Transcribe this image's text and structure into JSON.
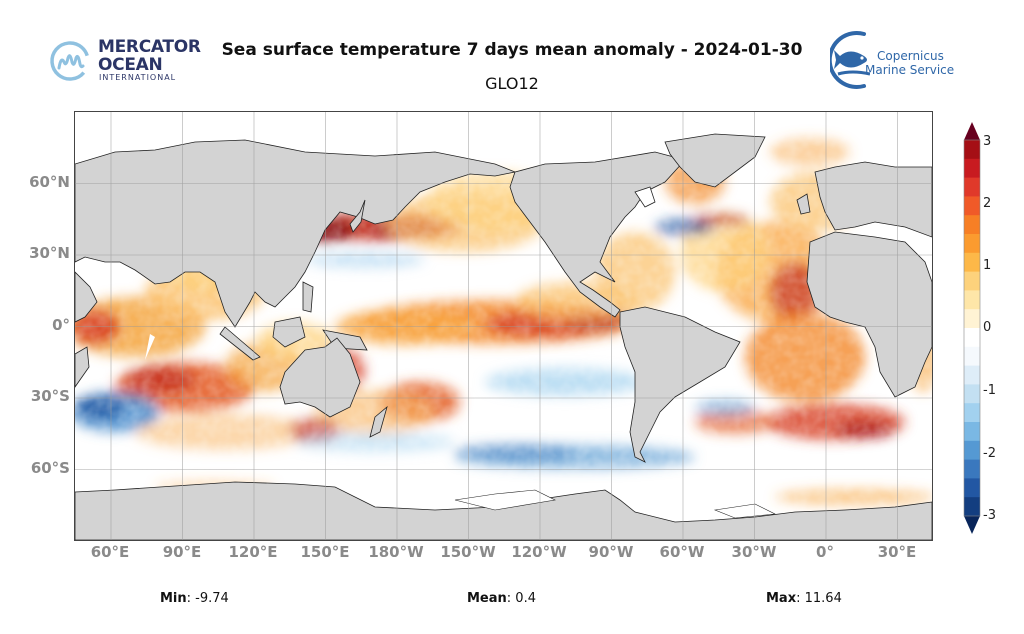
{
  "header": {
    "title": "Sea surface temperature 7 days mean anomaly - 2024-01-30",
    "subtitle": "GLO12"
  },
  "logos": {
    "left": {
      "line1": "MERCATOR",
      "line2": "OCEAN",
      "line3": "INTERNATIONAL",
      "icon": "mercator-m-logo-icon",
      "color": "#2b3566",
      "accent": "#8fc1e0"
    },
    "right": {
      "line1": "Copernicus",
      "line2": "Marine Service",
      "icon": "copernicus-fish-logo-icon",
      "color": "#2f67a8"
    }
  },
  "map": {
    "projection": "equirectangular",
    "land_color": "#d3d3d3",
    "x_ticks": [
      "60°E",
      "90°E",
      "120°E",
      "150°E",
      "180°W",
      "150°W",
      "120°W",
      "90°W",
      "60°W",
      "30°W",
      "0°",
      "30°E"
    ],
    "y_ticks": [
      "60°N",
      "30°N",
      "0°",
      "30°S",
      "60°S"
    ]
  },
  "colorbar": {
    "ticks": [
      "3",
      "2",
      "1",
      "0",
      "-1",
      "-2",
      "-3"
    ],
    "range": [
      -3,
      3
    ],
    "colors": [
      "#67001f",
      "#a50f15",
      "#c81b20",
      "#e0392a",
      "#f05a28",
      "#f77f25",
      "#fb9b2f",
      "#fdb848",
      "#fdd27c",
      "#fee6a8",
      "#fff3d4",
      "#ffffff",
      "#f5f9fd",
      "#deedf8",
      "#c3e0f2",
      "#a2d1ef",
      "#7ab8e4",
      "#5599d3",
      "#3a78be",
      "#2257a3",
      "#133e80",
      "#08255a"
    ]
  },
  "stats": {
    "min_label": "Min",
    "min_value": ": -9.74",
    "mean_label": "Mean",
    "mean_value": ": 0.4",
    "max_label": "Max",
    "max_value": ": 11.64"
  }
}
